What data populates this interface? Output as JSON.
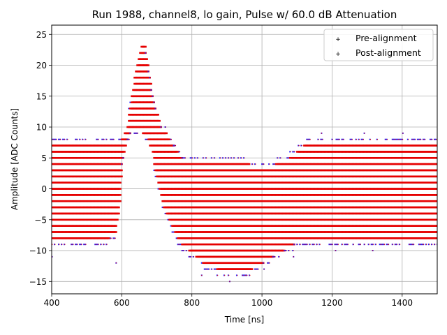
{
  "chart_data": {
    "type": "scatter",
    "title": "Run 1988, channel8, lo gain, Pulse w/ 60.0 dB Attenuation",
    "xlabel": "Time [ns]",
    "ylabel": "Amplitude [ADC Counts]",
    "xlim": [
      400,
      1500
    ],
    "ylim": [
      -17,
      26.5
    ],
    "xticks": [
      400,
      600,
      800,
      1000,
      1200,
      1400
    ],
    "yticks": [
      -15,
      -10,
      -5,
      0,
      5,
      10,
      15,
      20,
      25
    ],
    "xtick_labels": [
      "400",
      "600",
      "800",
      "1000",
      "1200",
      "1400"
    ],
    "ytick_labels": [
      "−15",
      "−10",
      "−5",
      "0",
      "5",
      "10",
      "15",
      "20",
      "25"
    ],
    "grid": true,
    "legend_position": "top-right",
    "sample_spacing_ns": 4,
    "baseline_bands": {
      "min": -9,
      "max": 8
    },
    "pulse_upper": [
      [
        400,
        8
      ],
      [
        580,
        8
      ],
      [
        600,
        9
      ],
      [
        615,
        11
      ],
      [
        625,
        15
      ],
      [
        635,
        19
      ],
      [
        645,
        22
      ],
      [
        655,
        24
      ],
      [
        665,
        24
      ],
      [
        672,
        21
      ],
      [
        680,
        18
      ],
      [
        690,
        15
      ],
      [
        700,
        13
      ],
      [
        710,
        11
      ],
      [
        725,
        10
      ],
      [
        745,
        8
      ],
      [
        770,
        6
      ],
      [
        800,
        5
      ],
      [
        830,
        5
      ],
      [
        900,
        5
      ],
      [
        960,
        5
      ],
      [
        1000,
        4
      ],
      [
        1040,
        5
      ],
      [
        1080,
        6
      ],
      [
        1100,
        7
      ],
      [
        1120,
        8
      ],
      [
        1500,
        8
      ]
    ],
    "pulse_lower": [
      [
        400,
        -9
      ],
      [
        560,
        -9
      ],
      [
        580,
        -8
      ],
      [
        590,
        -5
      ],
      [
        595,
        -1
      ],
      [
        598,
        3
      ],
      [
        620,
        8
      ],
      [
        640,
        9
      ],
      [
        660,
        8
      ],
      [
        675,
        7
      ],
      [
        685,
        5
      ],
      [
        695,
        2
      ],
      [
        705,
        -1
      ],
      [
        720,
        -4
      ],
      [
        735,
        -6
      ],
      [
        750,
        -8
      ],
      [
        770,
        -10
      ],
      [
        790,
        -11
      ],
      [
        830,
        -13
      ],
      [
        870,
        -14
      ],
      [
        930,
        -15
      ],
      [
        970,
        -14
      ],
      [
        1000,
        -13
      ],
      [
        1030,
        -12
      ],
      [
        1060,
        -11
      ],
      [
        1090,
        -10
      ],
      [
        1120,
        -9
      ],
      [
        1500,
        -9
      ]
    ],
    "outliers": [
      [
        401,
        -11
      ],
      [
        584,
        -12
      ],
      [
        828,
        -14
      ],
      [
        908,
        -15
      ],
      [
        1006,
        -13
      ],
      [
        1210,
        -10
      ],
      [
        1316,
        -10
      ],
      [
        1090,
        -11
      ],
      [
        1402,
        9
      ],
      [
        1292,
        9
      ],
      [
        1170,
        9
      ]
    ],
    "series": [
      {
        "name": "Pre-alignment",
        "color": "#1f1fff",
        "marker": "+"
      },
      {
        "name": "Post-alignment",
        "color": "#e60000",
        "marker": "+"
      }
    ]
  }
}
